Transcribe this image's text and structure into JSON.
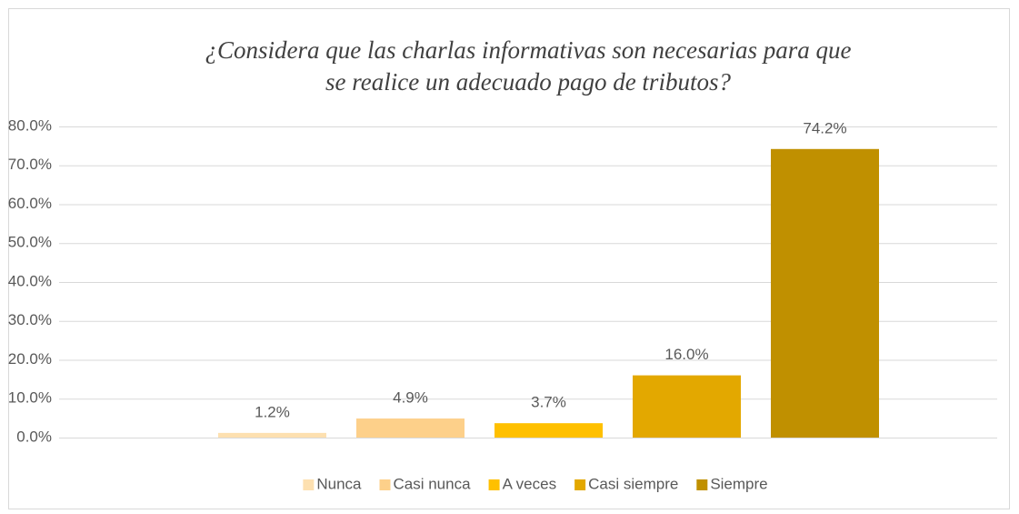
{
  "chart_data": {
    "type": "bar",
    "title": "¿Considera que las charlas informativas son necesarias para que se realice un adecuado pago de tributos?",
    "categories": [
      null
    ],
    "series": [
      {
        "name": "Nunca",
        "color": "#fde0b0",
        "values": [
          1.2
        ],
        "value_labels": [
          "1.2%"
        ]
      },
      {
        "name": "Casi nunca",
        "color": "#fdd08a",
        "values": [
          4.9
        ],
        "value_labels": [
          "4.9%"
        ]
      },
      {
        "name": "A veces",
        "color": "#ffc000",
        "values": [
          3.7
        ],
        "value_labels": [
          "3.7%"
        ]
      },
      {
        "name": "Casi siempre",
        "color": "#e3a800",
        "values": [
          16.0
        ],
        "value_labels": [
          "16.0%"
        ]
      },
      {
        "name": "Siempre",
        "color": "#c09000",
        "values": [
          74.2
        ],
        "value_labels": [
          "74.2%"
        ]
      }
    ],
    "ylim": [
      0,
      80
    ],
    "yticks": [
      {
        "value": 0,
        "label": "0.0%"
      },
      {
        "value": 10,
        "label": "10.0%"
      },
      {
        "value": 20,
        "label": "20.0%"
      },
      {
        "value": 30,
        "label": "30.0%"
      },
      {
        "value": 40,
        "label": "40.0%"
      },
      {
        "value": 50,
        "label": "50.0%"
      },
      {
        "value": 60,
        "label": "60.0%"
      },
      {
        "value": 70,
        "label": "70.0%"
      },
      {
        "value": 80,
        "label": "80.0%"
      }
    ],
    "grid": true,
    "legend": "bottom"
  }
}
